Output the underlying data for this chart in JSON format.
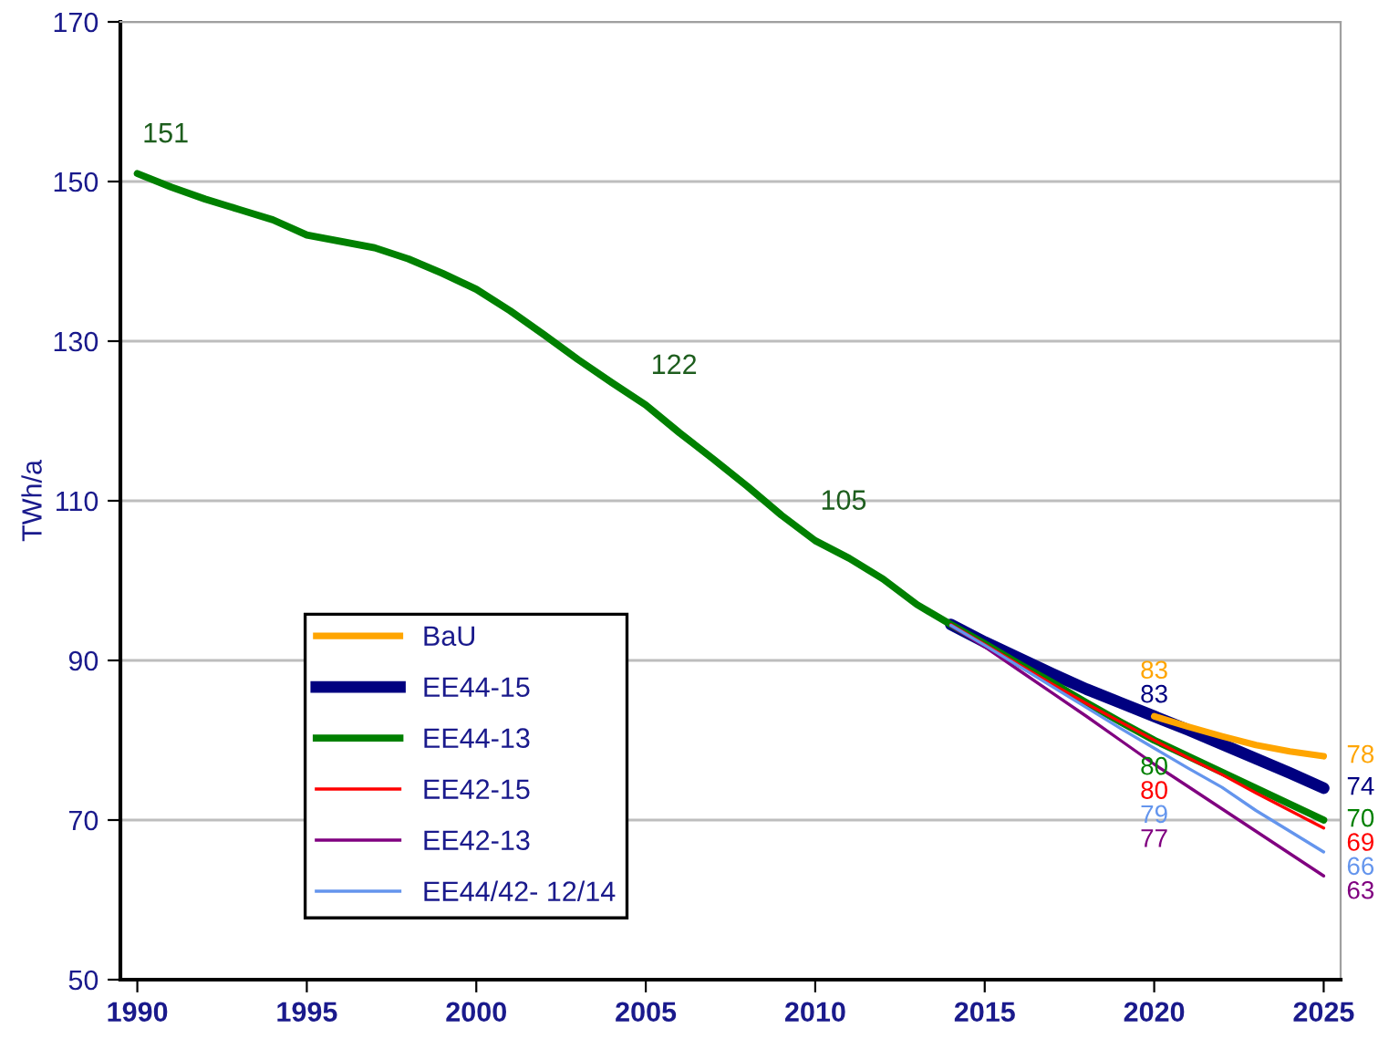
{
  "chart_data": {
    "type": "line",
    "ylabel": "TWh/a",
    "x": [
      1990,
      1991,
      1992,
      1993,
      1994,
      1995,
      1996,
      1997,
      1998,
      1999,
      2000,
      2001,
      2002,
      2003,
      2004,
      2005,
      2006,
      2007,
      2008,
      2009,
      2010,
      2011,
      2012,
      2013,
      2014,
      2015,
      2016,
      2017,
      2018,
      2019,
      2020,
      2021,
      2022,
      2023,
      2024,
      2025
    ],
    "xlim": [
      1989.5,
      2025.5
    ],
    "xticks": [
      1990,
      1995,
      2000,
      2005,
      2010,
      2015,
      2020,
      2025
    ],
    "ylim": [
      50,
      170
    ],
    "yticks": [
      50,
      70,
      90,
      110,
      130,
      150,
      170
    ],
    "grid": "y",
    "legend": "bottom left",
    "marker": "none",
    "line_style": "solid",
    "series": [
      {
        "name": "BaU",
        "color": "#ffa500",
        "values": [
          null,
          null,
          null,
          null,
          null,
          null,
          null,
          null,
          null,
          null,
          null,
          null,
          null,
          null,
          null,
          null,
          null,
          null,
          null,
          null,
          null,
          null,
          null,
          null,
          null,
          null,
          null,
          null,
          null,
          null,
          83,
          81.7,
          80.5,
          79.4,
          78.6,
          78
        ],
        "value_labels": [
          null,
          null,
          null,
          null,
          null,
          null,
          null,
          null,
          null,
          null,
          null,
          null,
          null,
          null,
          null,
          null,
          null,
          null,
          null,
          null,
          null,
          null,
          null,
          null,
          null,
          null,
          null,
          null,
          null,
          null,
          "83",
          null,
          null,
          null,
          null,
          "78"
        ]
      },
      {
        "name": "EE44-15",
        "color": "#000080",
        "values": [
          null,
          null,
          null,
          null,
          null,
          null,
          null,
          null,
          null,
          null,
          null,
          null,
          null,
          null,
          null,
          null,
          null,
          null,
          null,
          null,
          null,
          null,
          null,
          null,
          94.5,
          92.3,
          90.3,
          88.3,
          86.4,
          84.7,
          83,
          81.3,
          79.5,
          77.7,
          75.9,
          74
        ],
        "value_labels": [
          null,
          null,
          null,
          null,
          null,
          null,
          null,
          null,
          null,
          null,
          null,
          null,
          null,
          null,
          null,
          null,
          null,
          null,
          null,
          null,
          null,
          null,
          null,
          null,
          null,
          null,
          null,
          null,
          null,
          null,
          "83",
          null,
          null,
          null,
          null,
          "74"
        ]
      },
      {
        "name": "EE44-13",
        "color": "#008000",
        "values": [
          151,
          149.3,
          147.8,
          146.5,
          145.2,
          143.3,
          142.5,
          141.7,
          140.3,
          138.5,
          136.5,
          133.8,
          130.8,
          127.7,
          124.8,
          122,
          118.5,
          115.2,
          111.8,
          108.2,
          105,
          102.8,
          100.2,
          97,
          94.5,
          92.1,
          89.6,
          87.2,
          84.7,
          82.3,
          80,
          78,
          76,
          74,
          72,
          70
        ],
        "value_labels": [
          "151",
          null,
          null,
          null,
          null,
          null,
          null,
          null,
          null,
          null,
          null,
          null,
          null,
          null,
          null,
          "122",
          null,
          null,
          null,
          null,
          "105",
          null,
          null,
          null,
          null,
          null,
          null,
          null,
          null,
          null,
          "80",
          null,
          null,
          null,
          null,
          "70"
        ]
      },
      {
        "name": "EE42-15",
        "color": "#ff0000",
        "values": [
          null,
          null,
          null,
          null,
          null,
          null,
          null,
          null,
          null,
          null,
          null,
          null,
          null,
          null,
          null,
          null,
          null,
          null,
          null,
          null,
          null,
          null,
          null,
          null,
          94.5,
          92,
          89.5,
          87,
          84.6,
          82.3,
          80,
          77.8,
          75.7,
          73.4,
          71.2,
          69
        ],
        "value_labels": [
          null,
          null,
          null,
          null,
          null,
          null,
          null,
          null,
          null,
          null,
          null,
          null,
          null,
          null,
          null,
          null,
          null,
          null,
          null,
          null,
          null,
          null,
          null,
          null,
          null,
          null,
          null,
          null,
          null,
          null,
          "80",
          null,
          null,
          null,
          null,
          "69"
        ]
      },
      {
        "name": "EE42-13",
        "color": "#800080",
        "values": [
          null,
          null,
          null,
          null,
          null,
          null,
          null,
          null,
          null,
          null,
          null,
          null,
          null,
          null,
          null,
          null,
          null,
          null,
          null,
          null,
          null,
          null,
          null,
          null,
          94.3,
          91.7,
          88.8,
          85.9,
          83,
          80,
          77,
          74.2,
          71.4,
          68.6,
          65.8,
          63
        ],
        "value_labels": [
          null,
          null,
          null,
          null,
          null,
          null,
          null,
          null,
          null,
          null,
          null,
          null,
          null,
          null,
          null,
          null,
          null,
          null,
          null,
          null,
          null,
          null,
          null,
          null,
          null,
          null,
          null,
          null,
          null,
          null,
          "77",
          null,
          null,
          null,
          null,
          "63"
        ]
      },
      {
        "name": "EE44/42- 12/14",
        "color": "#6495ed",
        "values": [
          null,
          null,
          null,
          null,
          null,
          null,
          null,
          null,
          null,
          null,
          null,
          null,
          null,
          null,
          null,
          null,
          null,
          null,
          null,
          null,
          null,
          null,
          null,
          null,
          94.4,
          91.9,
          89.3,
          86.7,
          84.1,
          81.5,
          79,
          76.5,
          74.1,
          71.2,
          68.6,
          66
        ],
        "value_labels": [
          null,
          null,
          null,
          null,
          null,
          null,
          null,
          null,
          null,
          null,
          null,
          null,
          null,
          null,
          null,
          null,
          null,
          null,
          null,
          null,
          null,
          null,
          null,
          null,
          null,
          null,
          null,
          null,
          null,
          null,
          "79",
          null,
          null,
          null,
          null,
          "66"
        ]
      }
    ]
  }
}
